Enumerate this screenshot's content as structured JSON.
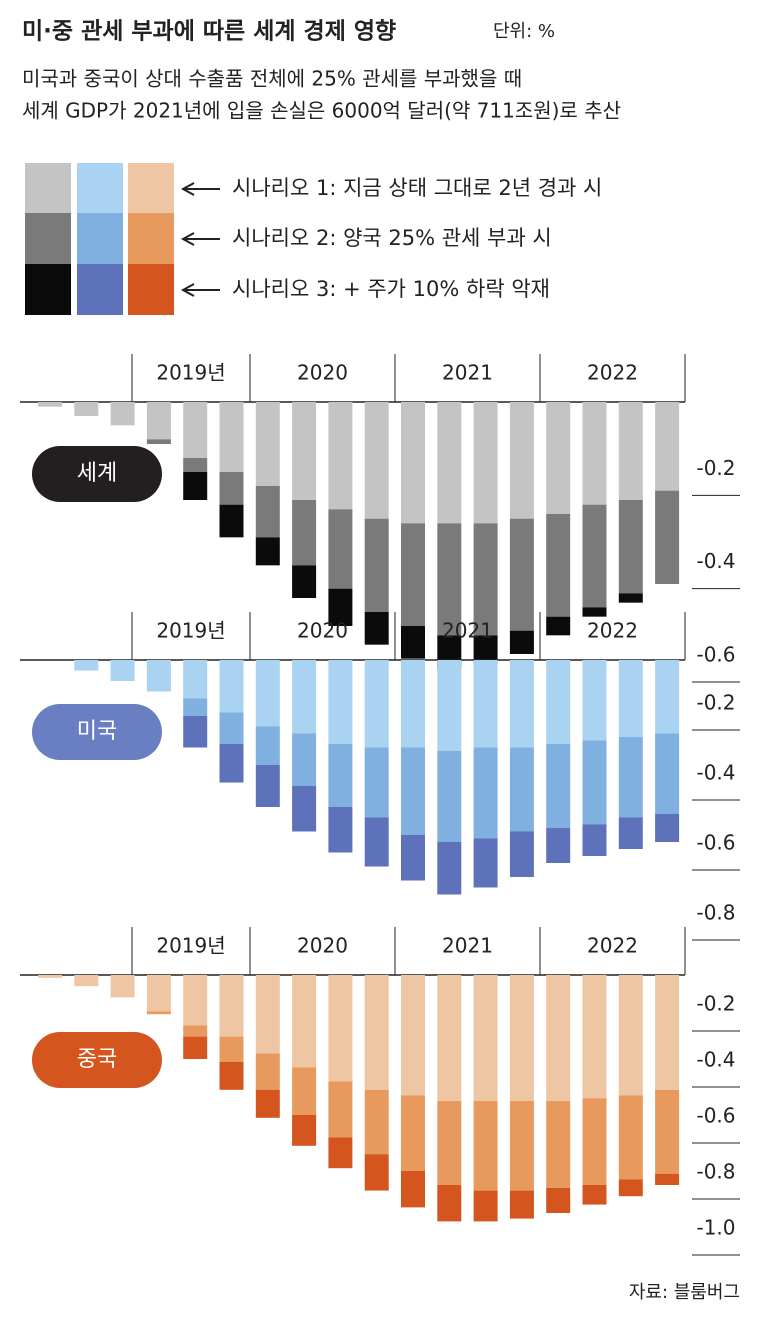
{
  "title": "미·중 관세 부과에 따른 세계 경제 영향",
  "unit": "단위: %",
  "subtitle": [
    "미국과 중국이 상대 수출품 전체에 25% 관세를 부과했을 때",
    "세계 GDP가 2021년에 입을 손실은 6000억 달러(약 711조원)로 추산"
  ],
  "legend": [
    "시나리오 1: 지금 상태 그대로 2년 경과 시",
    "시나리오 2: 양국 25% 관세 부과 시",
    "시나리오 3: + 주가 10% 하락 악재"
  ],
  "chart_data": [
    {
      "type": "bar",
      "stacked": true,
      "label": "세계",
      "label_color": "#231f20",
      "periods": [
        "2019년",
        "2020",
        "2021",
        "2022"
      ],
      "categories": [
        null,
        null,
        null,
        null,
        null,
        null,
        null,
        null,
        null,
        null,
        null,
        null,
        null,
        null,
        null,
        null,
        null,
        null
      ],
      "ylim": [
        -0.6,
        0
      ],
      "yticks": [
        -0.2,
        -0.4,
        -0.6
      ],
      "series": [
        {
          "color": "#c4c4c4",
          "values": [
            -0.01,
            -0.03,
            -0.05,
            -0.08,
            -0.12,
            -0.15,
            -0.18,
            -0.21,
            -0.23,
            -0.25,
            -0.26,
            -0.26,
            -0.26,
            -0.25,
            -0.24,
            -0.22,
            -0.21,
            -0.19
          ]
        },
        {
          "color": "#7a7a7a",
          "values": [
            0,
            0,
            0,
            -0.01,
            -0.03,
            -0.07,
            -0.11,
            -0.14,
            -0.17,
            -0.2,
            -0.22,
            -0.24,
            -0.24,
            -0.24,
            -0.22,
            -0.22,
            -0.2,
            -0.2
          ]
        },
        {
          "color": "#0b0b0b",
          "values": [
            0,
            0,
            0,
            0,
            -0.06,
            -0.07,
            -0.06,
            -0.07,
            -0.08,
            -0.07,
            -0.07,
            -0.07,
            -0.06,
            -0.05,
            -0.04,
            -0.02,
            -0.02,
            0
          ]
        }
      ]
    },
    {
      "type": "bar",
      "stacked": true,
      "label": "미국",
      "label_color": "#6a7fc2",
      "periods": [
        "2019년",
        "2020",
        "2021",
        "2022"
      ],
      "categories": [
        null,
        null,
        null,
        null,
        null,
        null,
        null,
        null,
        null,
        null,
        null,
        null,
        null,
        null,
        null,
        null,
        null,
        null
      ],
      "ylim": [
        -0.8,
        0
      ],
      "yticks": [
        -0.2,
        -0.4,
        -0.6,
        -0.8
      ],
      "series": [
        {
          "color": "#a9d3f0",
          "values": [
            0,
            -0.03,
            -0.06,
            -0.09,
            -0.11,
            -0.15,
            -0.19,
            -0.21,
            -0.24,
            -0.25,
            -0.25,
            -0.26,
            -0.25,
            -0.25,
            -0.24,
            -0.23,
            -0.22,
            -0.21
          ]
        },
        {
          "color": "#7fb0df",
          "values": [
            0,
            0,
            0,
            0,
            -0.05,
            -0.09,
            -0.11,
            -0.15,
            -0.18,
            -0.2,
            -0.25,
            -0.26,
            -0.26,
            -0.24,
            -0.24,
            -0.24,
            -0.23,
            -0.23
          ]
        },
        {
          "color": "#5e72bc",
          "values": [
            0,
            0,
            0,
            0,
            -0.09,
            -0.11,
            -0.12,
            -0.13,
            -0.13,
            -0.14,
            -0.13,
            -0.15,
            -0.14,
            -0.13,
            -0.1,
            -0.09,
            -0.09,
            -0.08
          ]
        }
      ]
    },
    {
      "type": "bar",
      "stacked": true,
      "label": "중국",
      "label_color": "#d4561e",
      "periods": [
        "2019년",
        "2020",
        "2021",
        "2022"
      ],
      "categories": [
        null,
        null,
        null,
        null,
        null,
        null,
        null,
        null,
        null,
        null,
        null,
        null,
        null,
        null,
        null,
        null,
        null,
        null
      ],
      "ylim": [
        -1,
        0
      ],
      "yticks": [
        -0.2,
        -0.4,
        -0.6,
        -0.8,
        {
          "value": -1,
          "label": "-1.0"
        }
      ],
      "series": [
        {
          "color": "#efc6a3",
          "values": [
            -0.01,
            -0.04,
            -0.08,
            -0.13,
            -0.18,
            -0.22,
            -0.28,
            -0.33,
            -0.38,
            -0.41,
            -0.43,
            -0.45,
            -0.45,
            -0.45,
            -0.45,
            -0.44,
            -0.43,
            -0.41
          ]
        },
        {
          "color": "#e89a5e",
          "values": [
            0,
            0,
            0,
            -0.01,
            -0.04,
            -0.09,
            -0.13,
            -0.17,
            -0.2,
            -0.23,
            -0.27,
            -0.3,
            -0.32,
            -0.32,
            -0.31,
            -0.31,
            -0.3,
            -0.3
          ]
        },
        {
          "color": "#d4561e",
          "values": [
            0,
            0,
            0,
            0,
            -0.08,
            -0.1,
            -0.1,
            -0.11,
            -0.11,
            -0.13,
            -0.13,
            -0.13,
            -0.11,
            -0.1,
            -0.09,
            -0.07,
            -0.06,
            -0.04
          ]
        }
      ]
    }
  ],
  "source": "자료: 블룸버그"
}
